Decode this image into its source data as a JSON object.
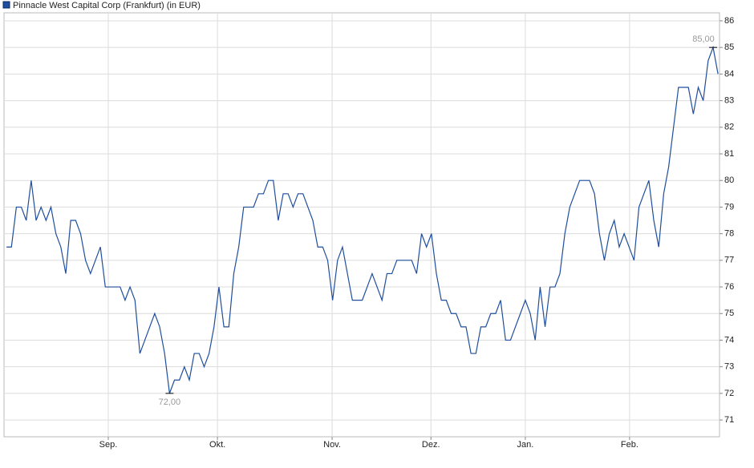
{
  "chart_data": {
    "type": "line",
    "x": [
      0,
      1,
      2,
      3,
      4,
      5,
      6,
      7,
      8,
      9,
      10,
      11,
      12,
      13,
      14,
      15,
      16,
      17,
      18,
      19,
      20,
      21,
      22,
      23,
      24,
      25,
      26,
      27,
      28,
      29,
      30,
      31,
      32,
      33,
      34,
      35,
      36,
      37,
      38,
      39,
      40,
      41,
      42,
      43,
      44,
      45,
      46,
      47,
      48,
      49,
      50,
      51,
      52,
      53,
      54,
      55,
      56,
      57,
      58,
      59,
      60,
      61,
      62,
      63,
      64,
      65,
      66,
      67,
      68,
      69,
      70,
      71,
      72,
      73,
      74,
      75,
      76,
      77,
      78,
      79,
      80,
      81,
      82,
      83,
      84,
      85,
      86,
      87,
      88,
      89,
      90,
      91,
      92,
      93,
      94,
      95,
      96,
      97,
      98,
      99,
      100,
      101,
      102,
      103,
      104,
      105,
      106,
      107,
      108,
      109,
      110,
      111,
      112,
      113,
      114,
      115,
      116,
      117,
      118,
      119,
      120,
      121,
      122,
      123,
      124,
      125,
      126,
      127,
      128,
      129,
      130,
      131,
      132,
      133,
      134,
      135,
      136,
      137,
      138,
      139,
      140,
      141,
      142,
      143,
      144
    ],
    "series": [
      {
        "name": "Pinnacle West Capital Corp (Frankfurt) (in EUR)",
        "color": "#1f4e9c",
        "values": [
          77.5,
          77.5,
          79,
          79,
          78.5,
          80,
          78.5,
          79,
          78.5,
          79,
          78,
          77.5,
          76.5,
          78.5,
          78.5,
          78,
          77,
          76.5,
          77,
          77.5,
          76,
          76,
          76,
          76,
          75.5,
          76,
          75.5,
          73.5,
          74,
          74.5,
          75,
          74.5,
          73.5,
          72,
          72.5,
          72.5,
          73,
          72.5,
          73.5,
          73.5,
          73,
          73.5,
          74.5,
          76,
          74.5,
          74.5,
          76.5,
          77.5,
          79,
          79,
          79,
          79.5,
          79.5,
          80,
          80,
          78.5,
          79.5,
          79.5,
          79,
          79.5,
          79.5,
          79,
          78.5,
          77.5,
          77.5,
          77,
          75.5,
          77,
          77.5,
          76.5,
          75.5,
          75.5,
          75.5,
          76,
          76.5,
          76,
          75.5,
          76.5,
          76.5,
          77,
          77,
          77,
          77,
          76.5,
          78,
          77.5,
          78,
          76.5,
          75.5,
          75.5,
          75,
          75,
          74.5,
          74.5,
          73.5,
          73.5,
          74.5,
          74.5,
          75,
          75,
          75.5,
          74,
          74,
          74.5,
          75,
          75.5,
          75,
          74,
          76,
          74.5,
          76,
          76,
          76.5,
          78,
          79,
          79.5,
          80,
          80,
          80,
          79.5,
          78,
          77,
          78,
          78.5,
          77.5,
          78,
          77.5,
          77,
          79,
          79.5,
          80,
          78.5,
          77.5,
          79.5,
          80.5,
          82,
          83.5,
          83.5,
          83.5,
          82.5,
          83.5,
          83,
          84.5,
          85,
          84
        ]
      }
    ],
    "xlim": [
      -0.5,
      144.3
    ],
    "xticks": [
      {
        "value": 20.6,
        "label": "Sep."
      },
      {
        "value": 42.7,
        "label": "Okt."
      },
      {
        "value": 65.9,
        "label": "Nov."
      },
      {
        "value": 85.9,
        "label": "Dez."
      },
      {
        "value": 105,
        "label": "Jan."
      },
      {
        "value": 126.1,
        "label": "Feb."
      }
    ],
    "ylim": [
      70.37,
      86.3
    ],
    "yticks": [
      71,
      72,
      73,
      74,
      75,
      76,
      77,
      78,
      79,
      80,
      81,
      82,
      83,
      84,
      85,
      86
    ],
    "grid": true,
    "annotations": [
      {
        "x": 143,
        "y": 85,
        "label": "85,00"
      },
      {
        "x": 33,
        "y": 72,
        "label": "72,00"
      }
    ]
  }
}
